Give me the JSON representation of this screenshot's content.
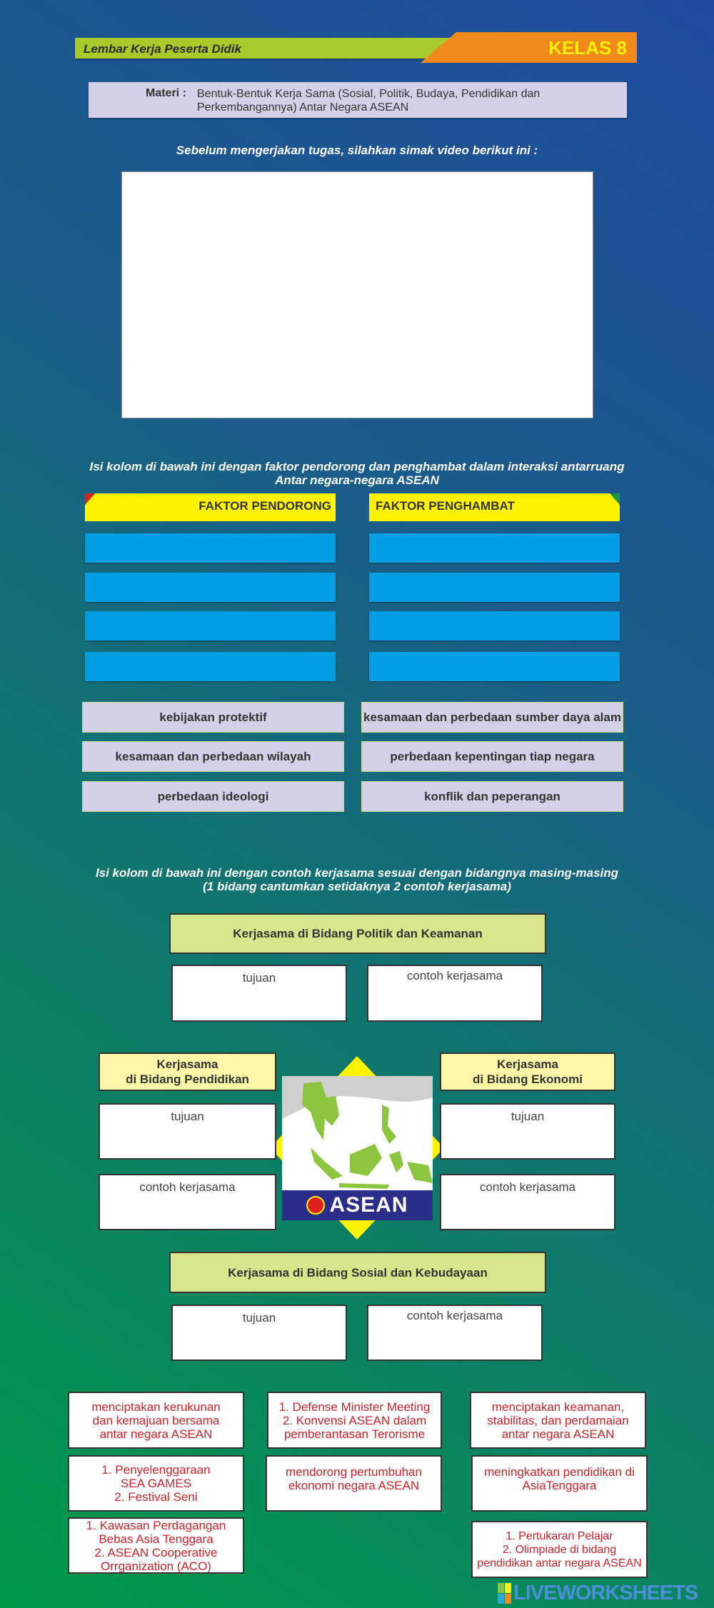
{
  "header": {
    "title": "Lembar Kerja Peserta Didik",
    "grade": "KELAS 8"
  },
  "materi": {
    "label": "Materi :",
    "text": "Bentuk-Bentuk Kerja Sama (Sosial, Politik, Budaya, Pendidikan dan Perkembangannya) Antar Negara ASEAN"
  },
  "video_instruction": "Sebelum mengerjakan tugas, silahkan simak video berikut ini :",
  "faktor": {
    "instruction_line1": "Isi kolom di bawah ini dengan faktor pendorong dan penghambat dalam interaksi antarruang",
    "instruction_line2": "Antar negara-negara ASEAN",
    "pendorong": "FAKTOR PENDORONG",
    "penghambat": "FAKTOR PENGHAMBAT",
    "options": [
      "kebijakan protektif",
      "kesamaan dan perbedaan sumber daya alam",
      "kesamaan dan perbedaan wilayah",
      "perbedaan kepentingan tiap negara",
      "perbedaan ideologi",
      "konflik dan peperangan"
    ]
  },
  "kerjasama": {
    "instruction_line1": "Isi kolom di bawah ini dengan contoh kerjasama sesuai dengan bidangnya masing-masing",
    "instruction_line2": "(1 bidang cantumkan setidaknya 2 contoh kerjasama)",
    "politik": "Kerjasama di Bidang Politik dan Keamanan",
    "pendidikan_l1": "Kerjasama",
    "pendidikan_l2": "di Bidang Pendidikan",
    "ekonomi_l1": "Kerjasama",
    "ekonomi_l2": "di Bidang Ekonomi",
    "sosial": "Kerjasama di Bidang Sosial dan Kebudayaan",
    "tujuan": "tujuan",
    "contoh": "contoh kerjasama",
    "map_logo": "ASEAN"
  },
  "answers": [
    "menciptakan kerukunan\ndan kemajuan bersama\nantar negara ASEAN",
    "1. Defense Minister Meeting\n2. Konvensi ASEAN dalam\npemberantasan Terorisme",
    "menciptakan keamanan,\nstabilitas, dan perdamaian\nantar negara ASEAN",
    "1. Penyelenggaraan\nSEA GAMES\n2. Festival Seni",
    "mendorong pertumbuhan\nekonomi negara ASEAN",
    "meningkatkan pendidikan di\nAsiaTenggara",
    "1. Kawasan Perdagangan\nBebas Asia Tenggara\n2. ASEAN Cooperative\nOrrganization (ACO)",
    "1. Pertukaran Pelajar\n2. Olimpiade di bidang\npendidikan antar negara ASEAN"
  ],
  "watermark": "LIVEWORKSHEETS",
  "colors": {
    "header_green": "#a8cb2a",
    "header_orange": "#ef8a1a",
    "drop_blue": "#009ee3",
    "header_yellow": "#fff200",
    "answer_red": "#d4202a"
  }
}
